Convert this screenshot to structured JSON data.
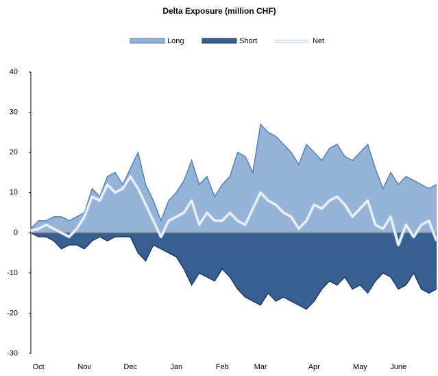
{
  "chart_data": {
    "type": "area",
    "title": "Delta Exposure (million CHF)",
    "categories": [
      null,
      "Oct",
      null,
      null,
      null,
      null,
      null,
      "Nov",
      null,
      null,
      null,
      null,
      null,
      "Dec",
      null,
      null,
      null,
      null,
      null,
      "Jan",
      null,
      null,
      null,
      null,
      null,
      "Feb",
      null,
      null,
      null,
      null,
      "Mar",
      null,
      null,
      null,
      null,
      null,
      null,
      "Apr",
      null,
      null,
      null,
      null,
      null,
      "May",
      null,
      null,
      null,
      null,
      "June",
      null,
      null,
      null,
      null,
      null
    ],
    "series": [
      {
        "name": "Long",
        "color": "#95b3d7",
        "edge": "#4f81bd",
        "values": [
          1,
          3,
          3,
          4,
          4,
          3,
          4,
          5,
          11,
          9,
          14,
          15,
          12,
          16,
          20,
          12,
          8,
          3,
          8,
          10,
          13,
          18,
          12,
          14,
          9,
          12,
          14,
          20,
          19,
          15,
          27,
          25,
          24,
          22,
          20,
          17,
          22,
          20,
          18,
          21,
          22,
          19,
          18,
          20,
          22,
          16,
          11,
          15,
          12,
          14,
          13,
          12,
          11,
          12
        ]
      },
      {
        "name": "Short",
        "color": "#376092",
        "edge": "#1f3864",
        "values": [
          0,
          -1,
          -1,
          -2,
          -4,
          -3,
          -3,
          -4,
          -2,
          -1,
          -2,
          -1,
          -1,
          -1,
          -5,
          -7,
          -3,
          -4,
          -5,
          -6,
          -9,
          -13,
          -10,
          -11,
          -12,
          -9,
          -11,
          -14,
          -16,
          -17,
          -18,
          -15,
          -17,
          -16,
          -17,
          -18,
          -19,
          -17,
          -14,
          -12,
          -13,
          -11,
          -14,
          -13,
          -15,
          -12,
          -10,
          -11,
          -14,
          -13,
          -10,
          -14,
          -15,
          -14
        ]
      },
      {
        "name": "Net",
        "color": "#ffffff",
        "edge": "#c6d6ec",
        "values": [
          0.5,
          1,
          2,
          1,
          0,
          -1,
          1,
          4,
          9,
          8,
          12,
          10,
          11,
          14,
          11,
          7,
          3,
          -1,
          3,
          4,
          5,
          8,
          2,
          5,
          3,
          3,
          5,
          3,
          2,
          6,
          10,
          8,
          7,
          5,
          4,
          1,
          3,
          7,
          6,
          8,
          9,
          7,
          4,
          6,
          8,
          2,
          1,
          4,
          -3,
          2,
          -1,
          2,
          3,
          -2
        ]
      }
    ],
    "ylim": [
      -30,
      40
    ],
    "yticks": [
      -30,
      -20,
      -10,
      0,
      10,
      20,
      30,
      40
    ],
    "grid": false
  }
}
